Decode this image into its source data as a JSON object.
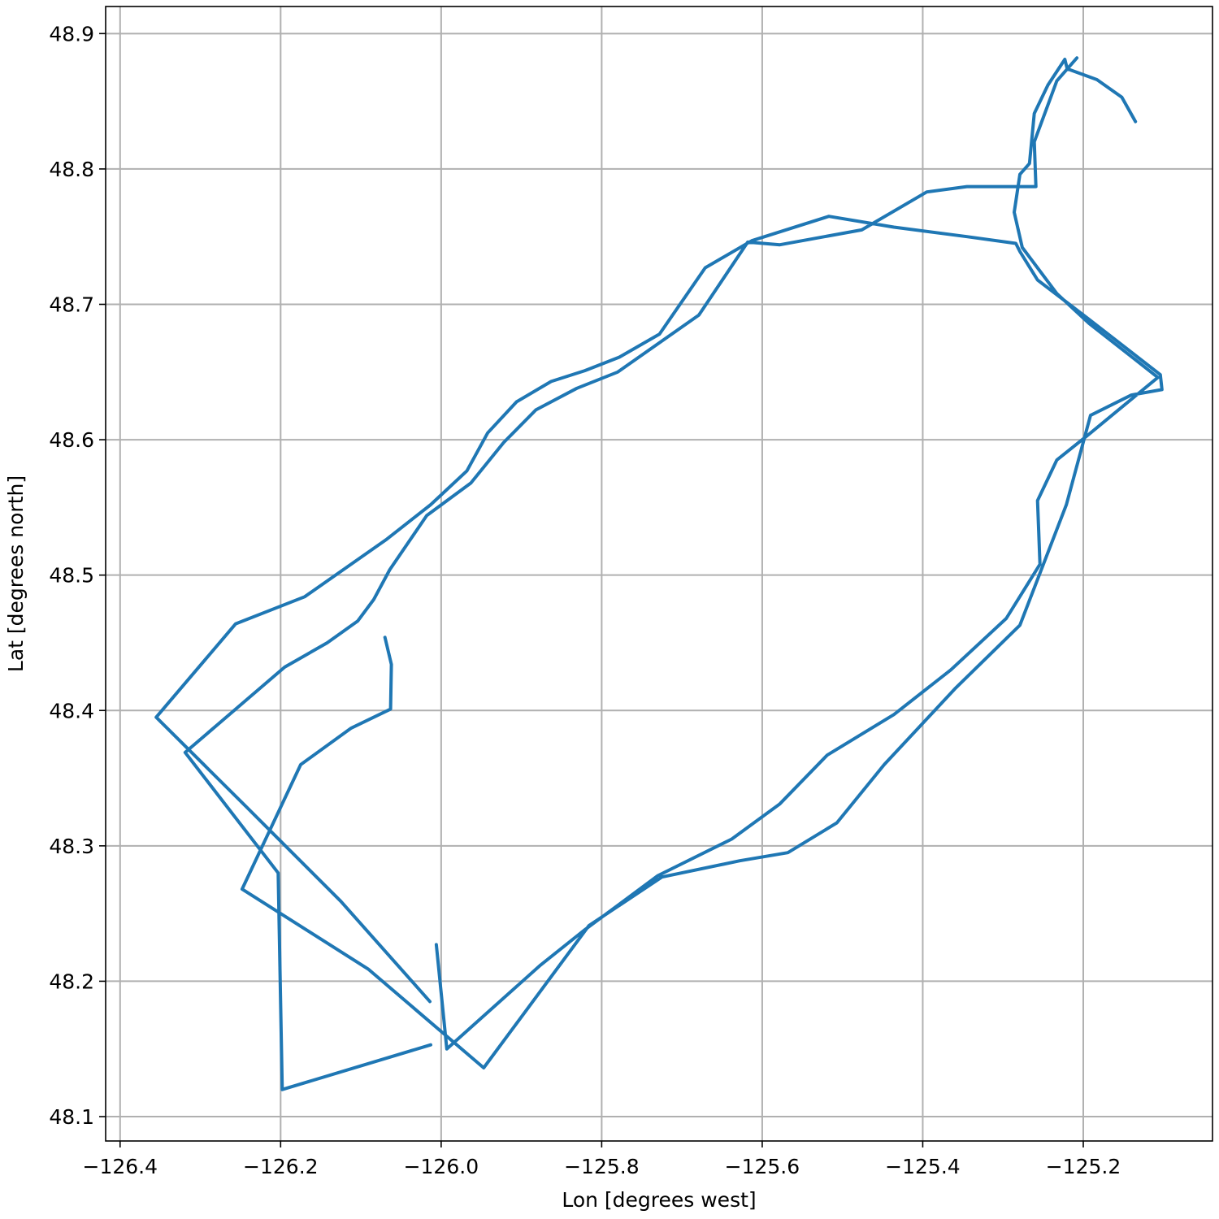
{
  "chart_data": {
    "type": "line",
    "xlabel": "Lon [degrees west]",
    "ylabel": "Lat [degrees north]",
    "color": "#1f77b4",
    "grid": true,
    "xlim": [
      -126.418,
      -125.039
    ],
    "ylim": [
      48.082,
      48.92
    ],
    "xticks": [
      {
        "value": -126.4,
        "label": "−126.4"
      },
      {
        "value": -126.2,
        "label": "−126.2"
      },
      {
        "value": -126.0,
        "label": "−126.0"
      },
      {
        "value": -125.8,
        "label": "−125.8"
      },
      {
        "value": -125.6,
        "label": "−125.6"
      },
      {
        "value": -125.4,
        "label": "−125.4"
      },
      {
        "value": -125.2,
        "label": "−125.2"
      }
    ],
    "yticks": [
      48.1,
      48.2,
      48.3,
      48.4,
      48.5,
      48.6,
      48.7,
      48.8,
      48.9
    ],
    "x": [
      -126.07,
      -126.062,
      -126.063,
      -126.112,
      -126.175,
      -126.248,
      -126.091,
      -125.947,
      -125.816,
      -125.725,
      -125.628,
      -125.568,
      -125.507,
      -125.448,
      -125.36,
      -125.279,
      -125.221,
      -125.191,
      -125.14,
      -125.102,
      -125.104,
      -125.193,
      -125.257,
      -125.279,
      -125.284,
      -125.345,
      -125.436,
      -125.517,
      -125.613,
      -125.671,
      -125.728,
      -125.778,
      -125.821,
      -125.863,
      -125.906,
      -125.942,
      -125.968,
      -126.013,
      -126.069,
      -126.17,
      -126.256,
      -126.355,
      -126.243,
      -126.125,
      -126.014,
      null,
      -126.006,
      -125.993,
      -125.876,
      -125.821,
      -125.73,
      -125.638,
      -125.578,
      -125.519,
      -125.436,
      -125.365,
      -125.296,
      -125.254,
      -125.257,
      -125.233,
      -125.193,
      -125.107,
      -125.193,
      -125.233,
      -125.276,
      -125.286,
      -125.279,
      -125.267,
      -125.261,
      -125.244,
      -125.223,
      -125.22,
      -125.183,
      -125.152,
      -125.135,
      null,
      -125.208,
      -125.233,
      -125.261,
      -125.259,
      -125.345,
      -125.395,
      -125.476,
      -125.578,
      -125.618,
      -125.679,
      -125.78,
      -125.831,
      -125.882,
      -125.922,
      -125.963,
      -126.018,
      -126.064,
      -126.084,
      -126.104,
      -126.142,
      -126.195,
      -126.319,
      -126.203,
      -126.198,
      -126.013
    ],
    "values": [
      48.454,
      48.434,
      48.401,
      48.387,
      48.36,
      48.268,
      48.209,
      48.136,
      48.241,
      48.277,
      48.289,
      48.295,
      48.317,
      48.36,
      48.416,
      48.463,
      48.552,
      48.618,
      48.633,
      48.637,
      48.648,
      48.689,
      48.718,
      48.739,
      48.745,
      48.75,
      48.757,
      48.765,
      48.747,
      48.727,
      48.678,
      48.661,
      48.651,
      48.643,
      48.628,
      48.605,
      48.577,
      48.552,
      48.526,
      48.484,
      48.464,
      48.395,
      48.329,
      48.259,
      48.185,
      null,
      48.227,
      48.15,
      48.212,
      48.238,
      48.278,
      48.305,
      48.331,
      48.367,
      48.397,
      48.43,
      48.468,
      48.508,
      48.555,
      48.585,
      48.604,
      48.646,
      48.686,
      48.708,
      48.742,
      48.768,
      48.796,
      48.804,
      48.841,
      48.862,
      48.881,
      48.874,
      48.866,
      48.853,
      48.835,
      null,
      48.882,
      48.865,
      48.82,
      48.787,
      48.787,
      48.783,
      48.755,
      48.744,
      48.746,
      48.692,
      48.65,
      48.638,
      48.622,
      48.598,
      48.568,
      48.544,
      48.504,
      48.482,
      48.466,
      48.45,
      48.432,
      48.369,
      48.28,
      48.12,
      48.153
    ]
  }
}
